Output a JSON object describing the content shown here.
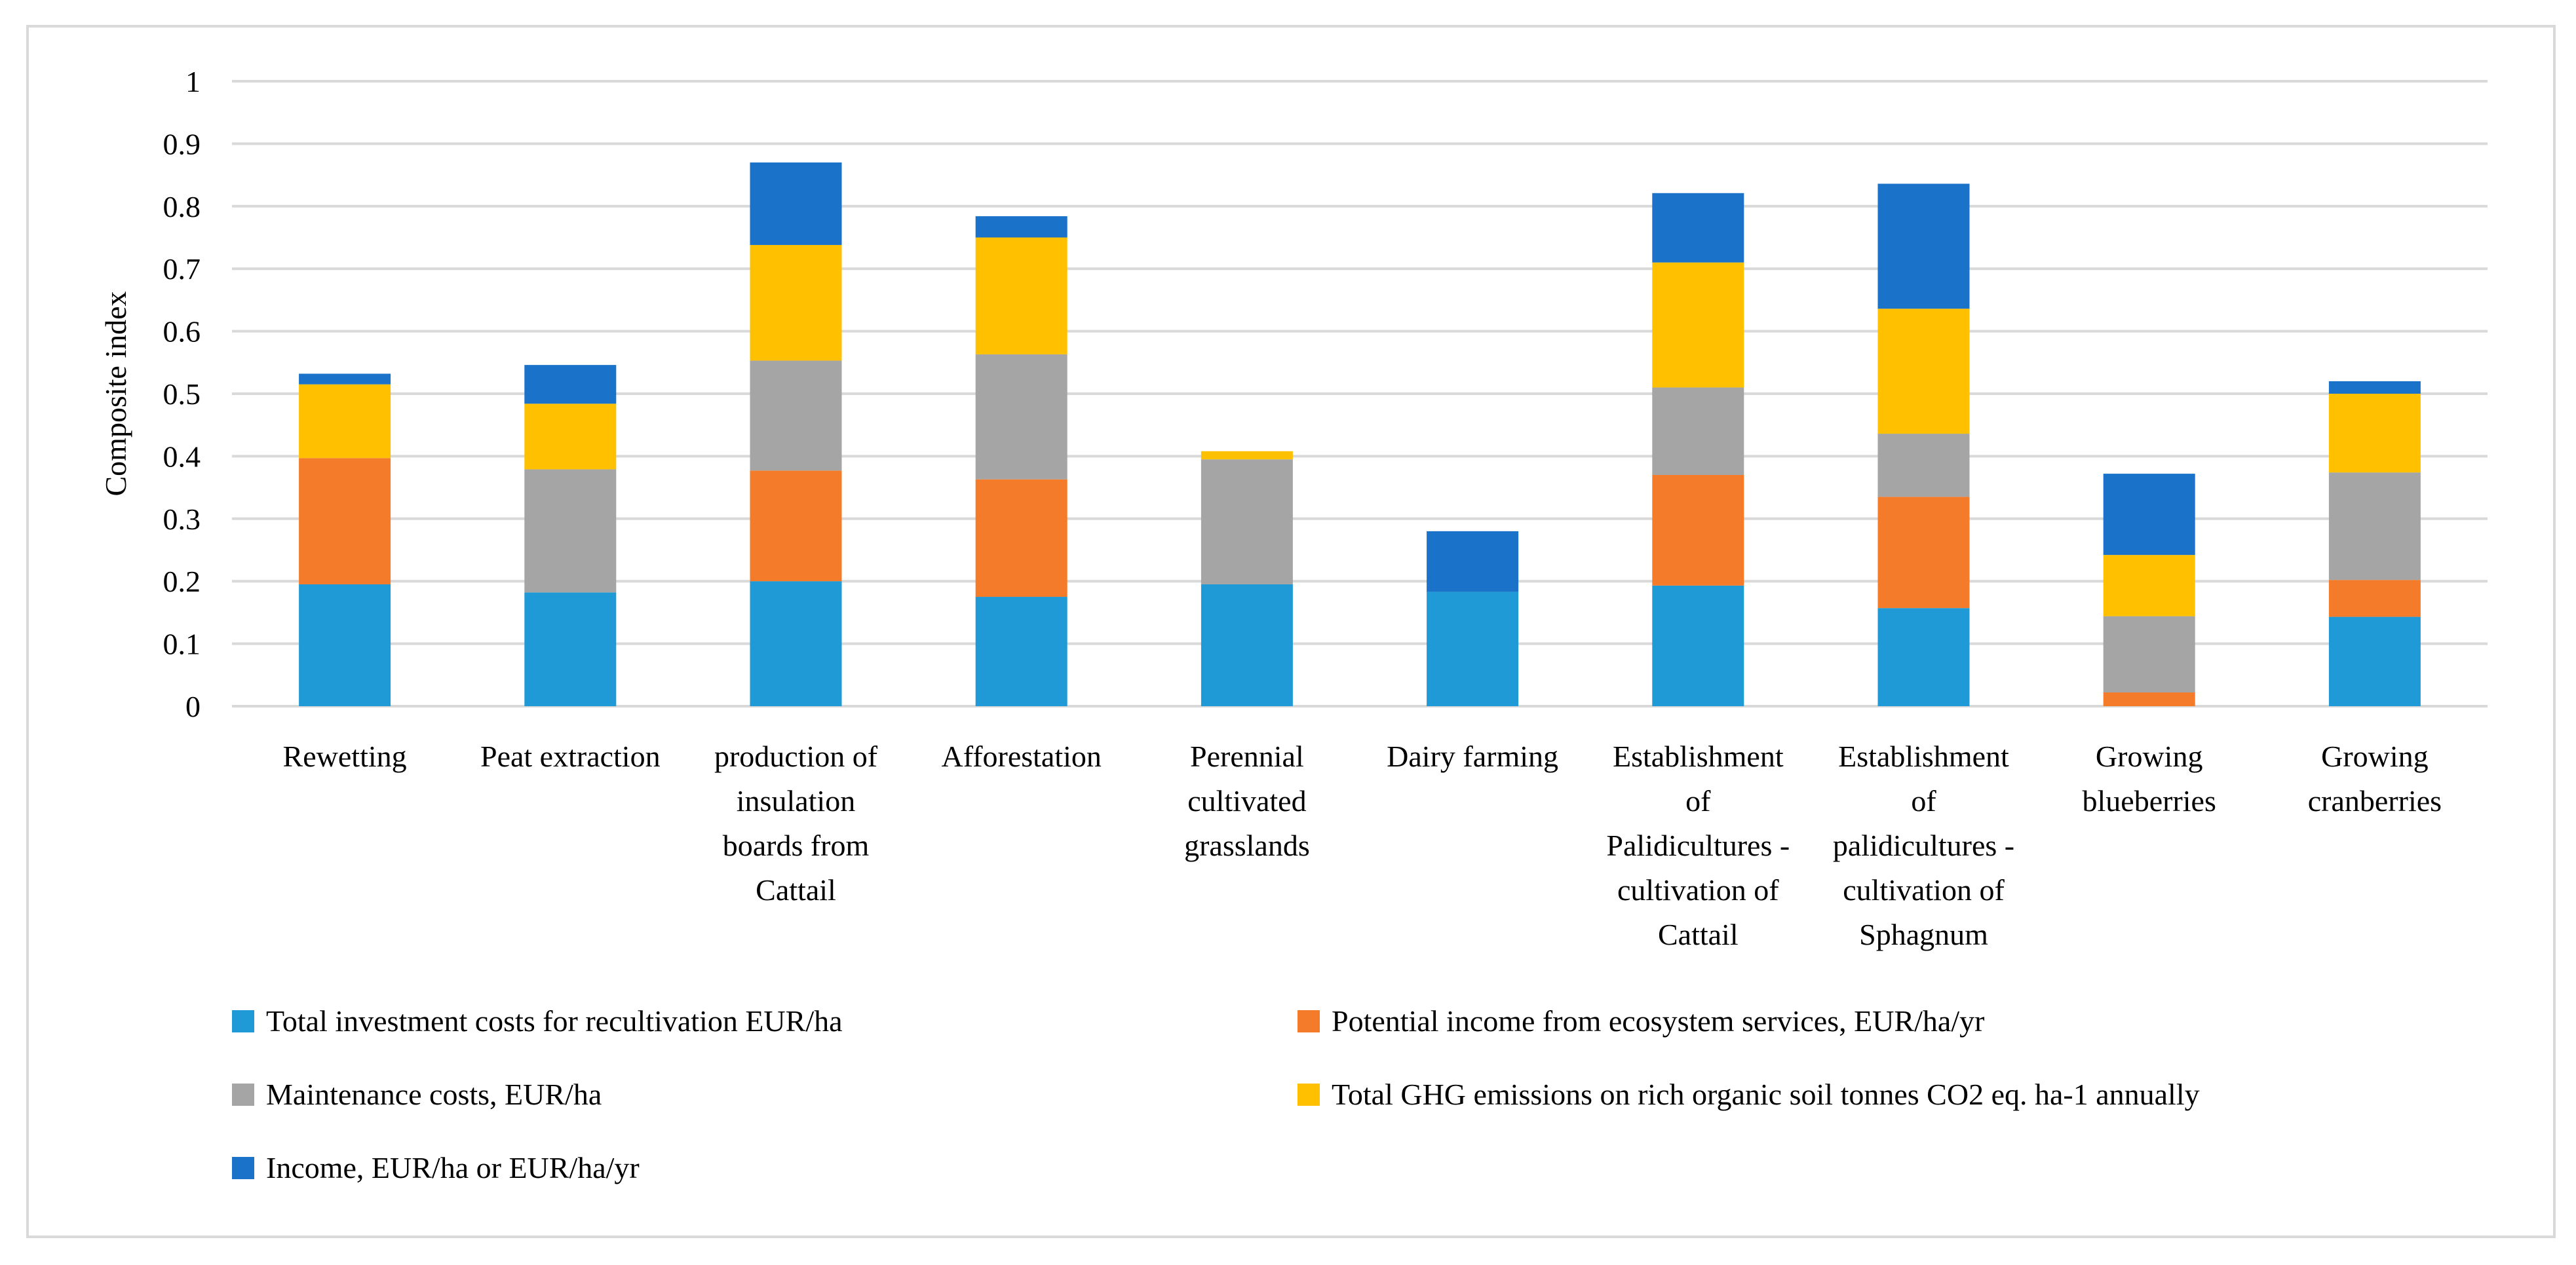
{
  "chart_data": {
    "type": "bar",
    "stacked": true,
    "title": "",
    "xlabel": "",
    "ylabel": "Composite index",
    "ylim": [
      0,
      1
    ],
    "yticks": [
      "0",
      "0.1",
      "0.2",
      "0.3",
      "0.4",
      "0.5",
      "0.6",
      "0.7",
      "0.8",
      "0.9",
      "1"
    ],
    "grid": true,
    "legend_position": "bottom",
    "categories": [
      [
        "Rewetting"
      ],
      [
        "Peat extraction"
      ],
      [
        "production of",
        "insulation",
        "boards from",
        "Cattail"
      ],
      [
        "Afforestation"
      ],
      [
        "Perennial",
        "cultivated",
        "grasslands"
      ],
      [
        "Dairy farming"
      ],
      [
        "Establishment",
        "of",
        "Palidicultures -",
        "cultivation of",
        "Cattail"
      ],
      [
        "Establishment",
        "of",
        "palidicultures -",
        "cultivation of",
        "Sphagnum"
      ],
      [
        "Growing",
        "blueberries"
      ],
      [
        "Growing",
        "cranberries"
      ]
    ],
    "series": [
      {
        "name": "Total investment costs for recultivation EUR/ha",
        "color": "#1f9ad6",
        "values": [
          0.195,
          0.182,
          0.2,
          0.175,
          0.195,
          0.183,
          0.193,
          0.157,
          0.0,
          0.143
        ]
      },
      {
        "name": "Potential income from ecosystem services, EUR/ha/yr",
        "color": "#f47b2a",
        "values": [
          0.202,
          0.0,
          0.177,
          0.188,
          0.0,
          0.0,
          0.177,
          0.178,
          0.022,
          0.059
        ]
      },
      {
        "name": "Maintenance costs, EUR/ha",
        "color": "#a5a5a5",
        "values": [
          0.0,
          0.197,
          0.176,
          0.2,
          0.2,
          0.0,
          0.14,
          0.101,
          0.122,
          0.172
        ]
      },
      {
        "name": "Total GHG emissions on rich organic soil tonnes CO2 eq. ha-1 annually",
        "color": "#ffc000",
        "values": [
          0.118,
          0.105,
          0.185,
          0.187,
          0.013,
          0.0,
          0.2,
          0.2,
          0.098,
          0.126
        ]
      },
      {
        "name": "Income,  EUR/ha or EUR/ha/yr",
        "color": "#1a72c9",
        "values": [
          0.017,
          0.062,
          0.132,
          0.034,
          0.0,
          0.097,
          0.111,
          0.2,
          0.13,
          0.02
        ]
      }
    ]
  }
}
